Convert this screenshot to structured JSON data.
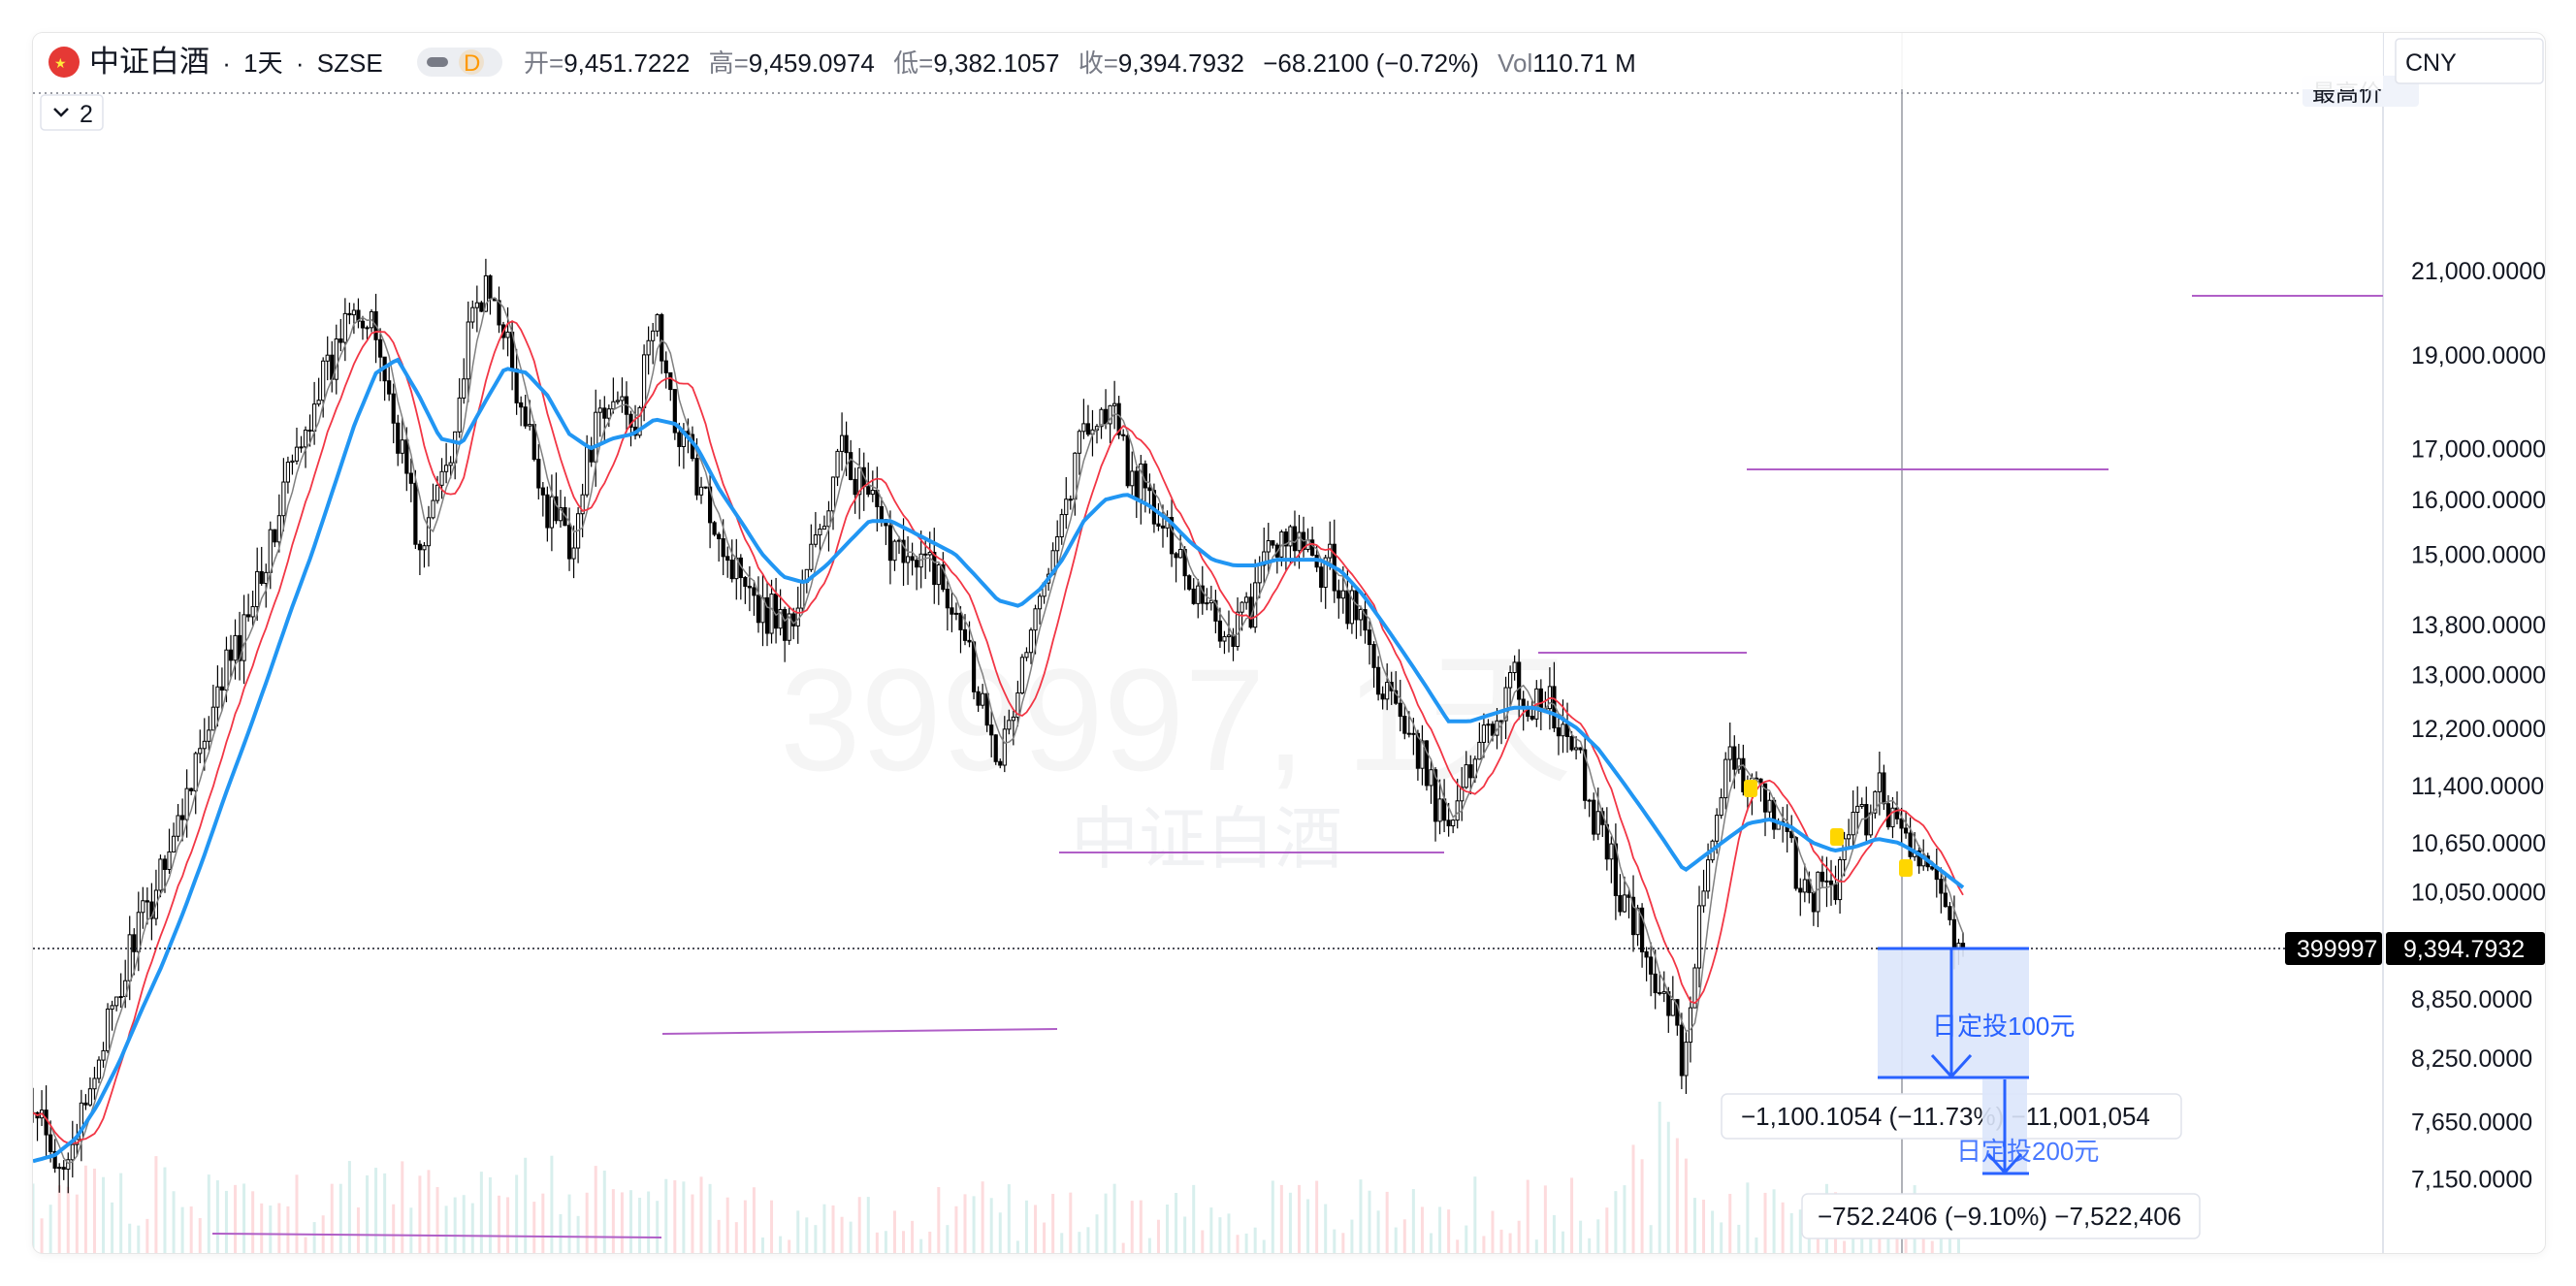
{
  "header": {
    "symbol_name": "中证白酒",
    "interval": "1天",
    "exchange": "SZSE",
    "separator": "·",
    "badge": "D",
    "ohlc": [
      {
        "label": "开=",
        "value": "9,451.7222"
      },
      {
        "label": "高=",
        "value": "9,459.0974"
      },
      {
        "label": "低=",
        "value": "9,382.1057"
      },
      {
        "label": "收=",
        "value": "9,394.7932"
      }
    ],
    "change": "−68.2100 (−0.72%)",
    "vol_label": "Vol",
    "vol_value": "110.71 M"
  },
  "toolbar": {
    "collapse_count": "2",
    "currency": "CNY"
  },
  "axis": {
    "top_label": "最高价",
    "top_value_partial": "21,000.0000",
    "current_symbol": "399997",
    "current_price": "9,394.7932",
    "price_labels": [
      {
        "text": "21,000.0000",
        "value": 21000
      },
      {
        "text": "19,000.0000",
        "value": 19000
      },
      {
        "text": "17,000.0000",
        "value": 17000
      },
      {
        "text": "16,000.0000",
        "value": 16000
      },
      {
        "text": "15,000.0000",
        "value": 15000
      },
      {
        "text": "13,800.0000",
        "value": 13800
      },
      {
        "text": "13,000.0000",
        "value": 13000
      },
      {
        "text": "12,200.0000",
        "value": 12200
      },
      {
        "text": "11,400.0000",
        "value": 11400
      },
      {
        "text": "10,650.0000",
        "value": 10650
      },
      {
        "text": "10,050.0000",
        "value": 10050
      },
      {
        "text": "8,850.0000",
        "value": 8850
      },
      {
        "text": "8,250.0000",
        "value": 8250
      },
      {
        "text": "7,650.0000",
        "value": 7650
      },
      {
        "text": "7,150.0000",
        "value": 7150
      }
    ]
  },
  "watermark": {
    "code": "399997, 1天",
    "name": "中证白酒"
  },
  "annotations": {
    "measure1_label": "日定投100元",
    "measure1_stats": "−1,100.1054 (−11.73%) −11,001,054",
    "measure2_label": "日定投200元",
    "measure2_stats": "−752.2406 (−9.10%) −7,522,406"
  },
  "colors": {
    "candle": "#000000",
    "ma_blue": "#2196f3",
    "ma_red": "#f23645",
    "ma_gray": "#808080",
    "hline": "#b05fc7",
    "measure": "#2962ff",
    "measure_fill": "#dce6fb"
  },
  "chart_data": {
    "type": "line",
    "scale": "log",
    "ylim": [
      7000,
      21500
    ],
    "series": [
      {
        "values": [
          7700,
          7250,
          7500,
          8200,
          8900,
          9700,
          10300,
          11200,
          12000,
          13000,
          14000,
          15200,
          16500,
          17800,
          19000,
          20500,
          19200,
          17500,
          15000,
          16300,
          18400,
          20800,
          19500,
          17200,
          16000,
          15200,
          16900,
          18100,
          17600,
          19800,
          17500,
          16400,
          15300,
          14700,
          14200,
          13700,
          14500,
          15900,
          17100,
          15800,
          15300,
          14900,
          14700,
          14200,
          13000,
          11800,
          12800,
          14400,
          15900,
          17400,
          17900,
          16800,
          15900,
          15300,
          14600,
          14000,
          13600,
          14400,
          15300,
          15100,
          14800,
          14500,
          13700,
          12800,
          12100,
          11500,
          10900,
          11700,
          12400,
          12800,
          12600,
          12400,
          11700,
          10900,
          10100,
          9400,
          8900,
          8300,
          10300,
          11500,
          11700,
          11100,
          10400,
          9900,
          10300,
          10900,
          11300,
          10800,
          10400,
          10000,
          9400
        ]
      },
      {
        "values": [
          7300,
          7350,
          7500,
          7800,
          8200,
          8700,
          9200,
          9800,
          10500,
          11300,
          12100,
          13000,
          14000,
          15000,
          16200,
          17500,
          18600,
          18900,
          18100,
          17200,
          17100,
          17900,
          18700,
          18600,
          18100,
          17300,
          17000,
          17200,
          17300,
          17600,
          17500,
          17000,
          16200,
          15600,
          15000,
          14600,
          14500,
          14800,
          15200,
          15600,
          15600,
          15400,
          15200,
          15000,
          14600,
          14200,
          14100,
          14400,
          14900,
          15600,
          16000,
          16100,
          15900,
          15600,
          15200,
          14900,
          14800,
          14800,
          14900,
          14900,
          14900,
          14700,
          14300,
          13800,
          13300,
          12800,
          12300,
          12300,
          12400,
          12500,
          12500,
          12400,
          12200,
          11900,
          11500,
          11100,
          10700,
          10300,
          10500,
          10700,
          10900,
          10950,
          10850,
          10650,
          10550,
          10600,
          10700,
          10650,
          10500,
          10300,
          10100
        ]
      }
    ]
  }
}
